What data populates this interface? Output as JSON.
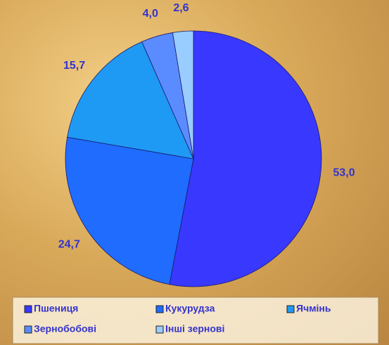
{
  "chart_data": {
    "type": "pie",
    "categories": [
      "Пшениця",
      "Кукурудза",
      "Ячмінь",
      "Зернобобові",
      "Інші зернові"
    ],
    "values": [
      53.0,
      24.7,
      15.7,
      4.0,
      2.6
    ],
    "value_labels": [
      "53,0",
      "24,7",
      "15,7",
      "4,0",
      "2,6"
    ],
    "colors": [
      "#3838ff",
      "#1f6cff",
      "#1e9af5",
      "#5a8cff",
      "#99ccff"
    ],
    "legend": "bottom"
  }
}
